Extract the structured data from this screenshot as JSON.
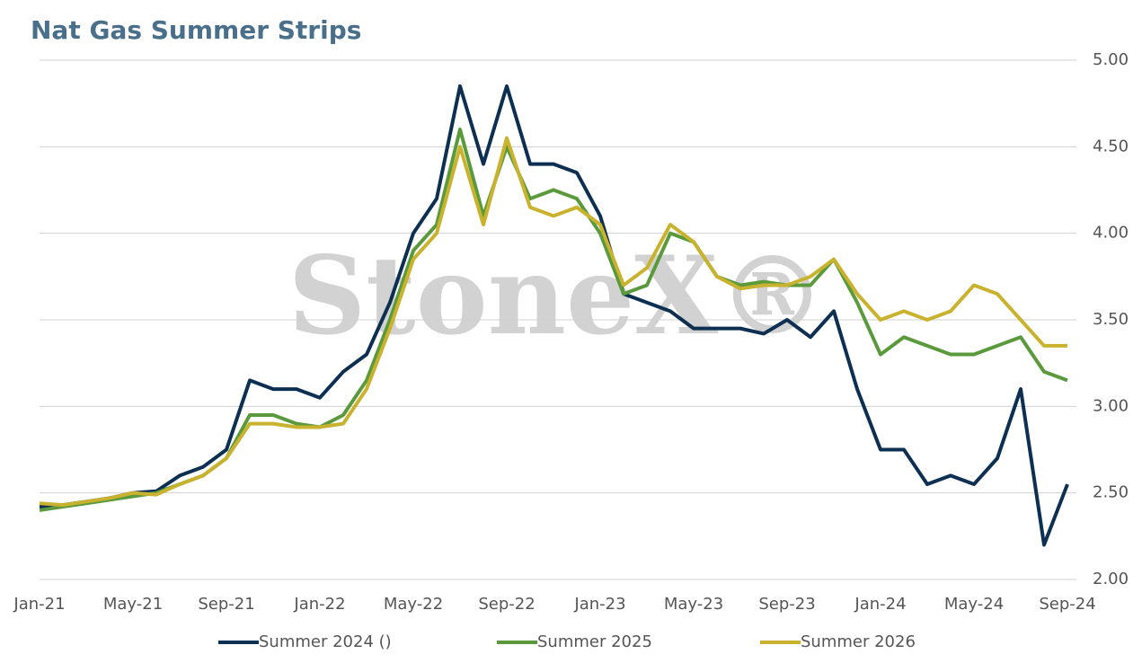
{
  "chart_data": {
    "type": "line",
    "title": "Nat Gas Summer Strips",
    "watermark": "StoneX®",
    "categories": [
      "Jan-21",
      null,
      null,
      null,
      "May-21",
      null,
      null,
      null,
      "Sep-21",
      null,
      null,
      null,
      "Jan-22",
      null,
      null,
      null,
      "May-22",
      null,
      null,
      null,
      "Sep-22",
      null,
      null,
      null,
      "Jan-23",
      null,
      null,
      null,
      "May-23",
      null,
      null,
      null,
      "Sep-23",
      null,
      null,
      null,
      "Jan-24",
      null,
      null,
      null,
      "May-24",
      null,
      null,
      null,
      "Sep-24"
    ],
    "series": [
      {
        "name": "Summer 2024 ()",
        "color": "#0d2f52",
        "values": [
          2.42,
          2.43,
          2.45,
          2.47,
          2.5,
          2.51,
          2.6,
          2.65,
          2.75,
          3.15,
          3.1,
          3.1,
          3.05,
          3.2,
          3.3,
          3.6,
          4.0,
          4.2,
          4.85,
          4.4,
          4.85,
          4.4,
          4.4,
          4.35,
          4.1,
          3.65,
          3.6,
          3.55,
          3.45,
          3.45,
          3.45,
          3.42,
          3.5,
          3.4,
          3.55,
          3.1,
          2.75,
          2.75,
          2.55,
          2.6,
          2.55,
          2.7,
          3.1,
          2.2,
          2.55
        ]
      },
      {
        "name": "Summer 2025",
        "color": "#5a9a3c",
        "values": [
          2.4,
          2.42,
          2.44,
          2.46,
          2.48,
          2.5,
          2.55,
          2.6,
          2.7,
          2.95,
          2.95,
          2.9,
          2.88,
          2.95,
          3.15,
          3.5,
          3.9,
          4.05,
          4.6,
          4.1,
          4.5,
          4.2,
          4.25,
          4.2,
          4.0,
          3.65,
          3.7,
          4.0,
          3.95,
          3.75,
          3.7,
          3.72,
          3.7,
          3.7,
          3.85,
          3.6,
          3.3,
          3.4,
          3.35,
          3.3,
          3.3,
          3.35,
          3.4,
          3.2,
          3.15
        ]
      },
      {
        "name": "Summer 2026",
        "color": "#c9b22e",
        "values": [
          2.44,
          2.43,
          2.45,
          2.47,
          2.5,
          2.49,
          2.55,
          2.6,
          2.7,
          2.9,
          2.9,
          2.88,
          2.88,
          2.9,
          3.1,
          3.45,
          3.85,
          4.0,
          4.5,
          4.05,
          4.55,
          4.15,
          4.1,
          4.15,
          4.05,
          3.7,
          3.8,
          4.05,
          3.95,
          3.75,
          3.68,
          3.7,
          3.7,
          3.75,
          3.85,
          3.65,
          3.5,
          3.55,
          3.5,
          3.55,
          3.7,
          3.65,
          3.5,
          3.35,
          3.35
        ]
      }
    ],
    "ylim": [
      2,
      5
    ],
    "yticks": [
      {
        "value": 2,
        "label": "2.00"
      },
      {
        "value": 2.5,
        "label": "2.50"
      },
      {
        "value": 3,
        "label": "3.00"
      },
      {
        "value": 3.5,
        "label": "3.50"
      },
      {
        "value": 4,
        "label": "4.00"
      },
      {
        "value": 4.5,
        "label": "4.50"
      },
      {
        "value": 5,
        "label": "5.00"
      }
    ],
    "grid": true
  }
}
